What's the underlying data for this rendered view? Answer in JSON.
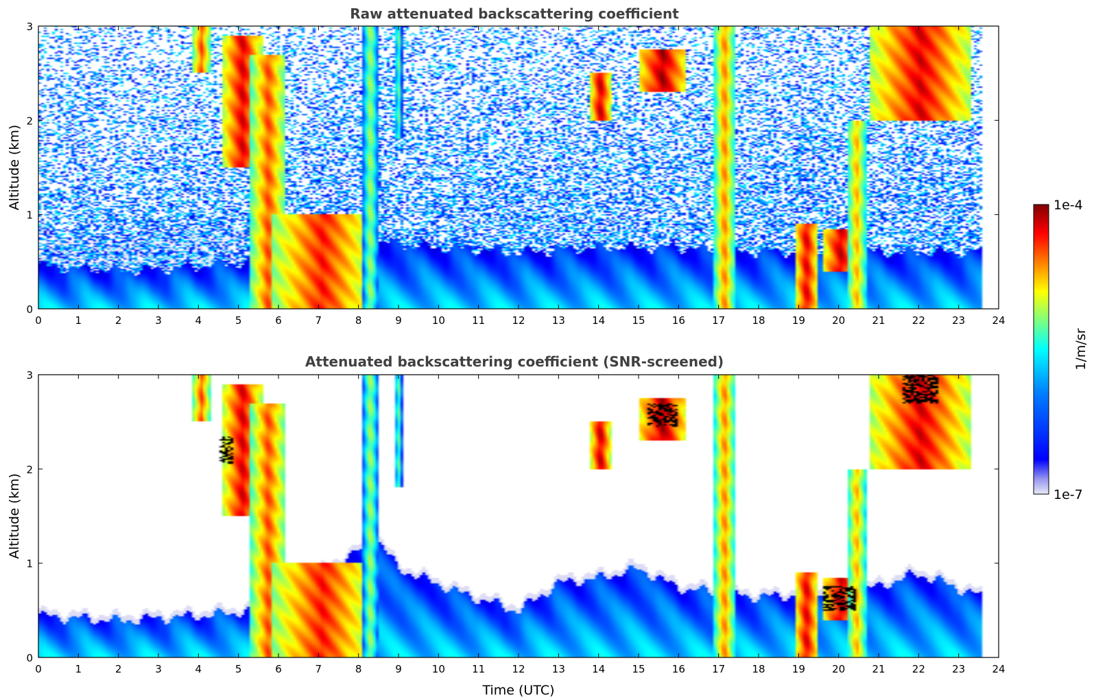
{
  "colors": {
    "jet": [
      "#00007f",
      "#0000ff",
      "#007fff",
      "#00ffff",
      "#7fff7f",
      "#ffff00",
      "#ff7f00",
      "#ff0000",
      "#7f0000"
    ],
    "low_faint": "#dcdcf5",
    "black_artifact": "#000000",
    "title_gray": "#404040"
  },
  "colorbar": {
    "max_label": "1e-4",
    "min_label": "1e-7",
    "unit_label": "1/m/sr"
  },
  "chart_data": [
    {
      "type": "heatmap",
      "title": "Raw attenuated backscattering coefficient",
      "xlabel": "",
      "ylabel": "Altitude (km)",
      "xlim": [
        0,
        24
      ],
      "ylim": [
        0,
        3
      ],
      "xticks": [
        0,
        1,
        2,
        3,
        4,
        5,
        6,
        7,
        8,
        9,
        10,
        11,
        12,
        13,
        14,
        15,
        16,
        17,
        18,
        19,
        20,
        21,
        22,
        23,
        24
      ],
      "yticks": [
        0,
        1,
        2,
        3
      ],
      "data_end_hour": 23.6,
      "noise": "high",
      "boundary_layer_top_km": [
        [
          0,
          0.45
        ],
        [
          2,
          0.4
        ],
        [
          4,
          0.45
        ],
        [
          5.3,
          0.5
        ],
        [
          8.5,
          0.7
        ],
        [
          10,
          0.65
        ],
        [
          12,
          0.6
        ],
        [
          14,
          0.65
        ],
        [
          16,
          0.65
        ],
        [
          18,
          0.6
        ],
        [
          20.5,
          0.6
        ],
        [
          23.6,
          0.6
        ]
      ],
      "features": [
        {
          "t0": 3.85,
          "t1": 4.3,
          "z0": 2.5,
          "z1": 3.0,
          "level": 0.8
        },
        {
          "t0": 4.6,
          "t1": 5.6,
          "z0": 1.5,
          "z1": 2.9,
          "level": 0.9
        },
        {
          "t0": 5.3,
          "t1": 6.2,
          "z0": 0.0,
          "z1": 2.7,
          "level": 0.8
        },
        {
          "t0": 5.8,
          "t1": 8.4,
          "z0": 0.0,
          "z1": 1.0,
          "level": 0.85
        },
        {
          "t0": 8.1,
          "t1": 8.5,
          "z0": 0.0,
          "z1": 3.0,
          "level": 0.55
        },
        {
          "t0": 8.9,
          "t1": 9.1,
          "z0": 1.8,
          "z1": 3.0,
          "level": 0.5
        },
        {
          "t0": 13.8,
          "t1": 14.3,
          "z0": 2.0,
          "z1": 2.5,
          "level": 0.93
        },
        {
          "t0": 15.0,
          "t1": 16.2,
          "z0": 2.3,
          "z1": 2.75,
          "level": 0.95
        },
        {
          "t0": 16.9,
          "t1": 17.4,
          "z0": 0.0,
          "z1": 3.0,
          "level": 0.75
        },
        {
          "t0": 18.9,
          "t1": 19.5,
          "z0": 0.0,
          "z1": 0.9,
          "level": 0.9
        },
        {
          "t0": 19.6,
          "t1": 20.5,
          "z0": 0.4,
          "z1": 0.85,
          "level": 0.92
        },
        {
          "t0": 20.2,
          "t1": 20.7,
          "z0": 0.0,
          "z1": 2.0,
          "level": 0.7
        },
        {
          "t0": 20.8,
          "t1": 23.3,
          "z0": 2.0,
          "z1": 3.0,
          "level": 0.9
        }
      ]
    },
    {
      "type": "heatmap",
      "title": "Attenuated backscattering coefficient (SNR-screened)",
      "xlabel": "Time (UTC)",
      "ylabel": "Altitude (km)",
      "xlim": [
        0,
        24
      ],
      "ylim": [
        0,
        3
      ],
      "xticks": [
        0,
        1,
        2,
        3,
        4,
        5,
        6,
        7,
        8,
        9,
        10,
        11,
        12,
        13,
        14,
        15,
        16,
        17,
        18,
        19,
        20,
        21,
        22,
        23,
        24
      ],
      "yticks": [
        0,
        1,
        2,
        3
      ],
      "data_end_hour": 23.6,
      "noise": "none",
      "boundary_layer_top_km": [
        [
          0,
          0.5
        ],
        [
          2,
          0.45
        ],
        [
          4,
          0.5
        ],
        [
          5.3,
          0.55
        ],
        [
          8.5,
          1.3
        ],
        [
          9,
          1.0
        ],
        [
          10.5,
          0.75
        ],
        [
          12,
          0.55
        ],
        [
          13,
          0.85
        ],
        [
          14,
          0.9
        ],
        [
          15,
          1.0
        ],
        [
          16,
          0.8
        ],
        [
          18,
          0.7
        ],
        [
          20.5,
          0.75
        ],
        [
          22,
          0.95
        ],
        [
          23.6,
          0.7
        ]
      ],
      "features": [
        {
          "t0": 3.85,
          "t1": 4.3,
          "z0": 2.5,
          "z1": 3.0,
          "level": 0.8
        },
        {
          "t0": 4.6,
          "t1": 5.6,
          "z0": 1.5,
          "z1": 2.9,
          "level": 0.9
        },
        {
          "t0": 5.3,
          "t1": 6.2,
          "z0": 0.0,
          "z1": 2.7,
          "level": 0.8
        },
        {
          "t0": 5.8,
          "t1": 8.4,
          "z0": 0.0,
          "z1": 1.0,
          "level": 0.85
        },
        {
          "t0": 8.1,
          "t1": 8.5,
          "z0": 0.0,
          "z1": 3.0,
          "level": 0.55
        },
        {
          "t0": 8.9,
          "t1": 9.1,
          "z0": 1.8,
          "z1": 3.0,
          "level": 0.5
        },
        {
          "t0": 13.8,
          "t1": 14.3,
          "z0": 2.0,
          "z1": 2.5,
          "level": 0.93
        },
        {
          "t0": 15.0,
          "t1": 16.2,
          "z0": 2.3,
          "z1": 2.75,
          "level": 0.95
        },
        {
          "t0": 16.9,
          "t1": 17.4,
          "z0": 0.0,
          "z1": 3.0,
          "level": 0.75
        },
        {
          "t0": 18.9,
          "t1": 19.5,
          "z0": 0.0,
          "z1": 0.9,
          "level": 0.9
        },
        {
          "t0": 19.6,
          "t1": 20.5,
          "z0": 0.4,
          "z1": 0.85,
          "level": 0.92
        },
        {
          "t0": 20.2,
          "t1": 20.7,
          "z0": 0.0,
          "z1": 2.0,
          "level": 0.7
        },
        {
          "t0": 20.8,
          "t1": 23.3,
          "z0": 2.0,
          "z1": 3.0,
          "level": 0.9
        }
      ],
      "black_regions": [
        {
          "t0": 4.55,
          "t1": 4.85,
          "z0": 2.05,
          "z1": 2.35
        },
        {
          "t0": 15.2,
          "t1": 16.0,
          "z0": 2.45,
          "z1": 2.7
        },
        {
          "t0": 19.6,
          "t1": 20.4,
          "z0": 0.5,
          "z1": 0.75
        },
        {
          "t0": 21.6,
          "t1": 22.5,
          "z0": 2.7,
          "z1": 3.0
        }
      ]
    }
  ]
}
